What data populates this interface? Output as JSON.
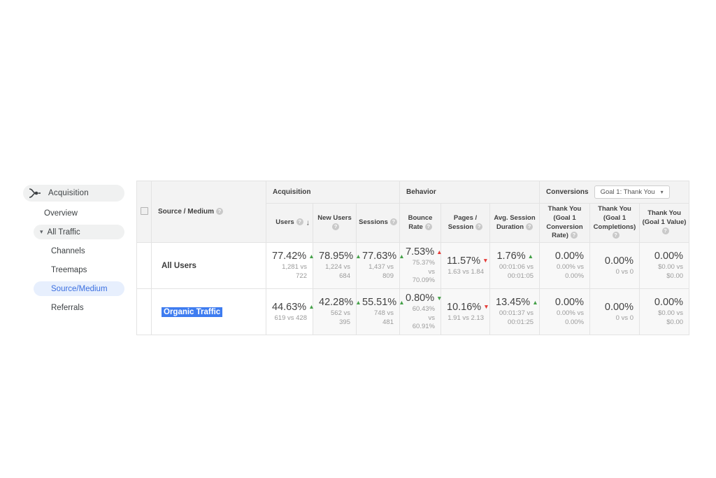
{
  "sidebar": {
    "section_label": "Acquisition",
    "section_icon": "acquisition-icon",
    "items": [
      {
        "label": "Overview",
        "level": 2,
        "state": "normal"
      },
      {
        "label": "All Traffic",
        "level": 2,
        "state": "expanded",
        "caret": "▾"
      },
      {
        "label": "Channels",
        "level": 3,
        "state": "normal"
      },
      {
        "label": "Treemaps",
        "level": 3,
        "state": "normal"
      },
      {
        "label": "Source/Medium",
        "level": 3,
        "state": "selected"
      },
      {
        "label": "Referrals",
        "level": 3,
        "state": "normal"
      }
    ]
  },
  "table": {
    "dimension_header": "Source / Medium",
    "groups": {
      "acquisition_label": "Acquisition",
      "behavior_label": "Behavior",
      "conversions_label": "Conversions",
      "goal_selector_value": "Goal 1: Thank You"
    },
    "columns": [
      {
        "label": "Users",
        "sorted": true,
        "sort_direction": "descending"
      },
      {
        "label": "New Users"
      },
      {
        "label": "Sessions"
      },
      {
        "label": "Bounce Rate"
      },
      {
        "label": "Pages / Session"
      },
      {
        "label": "Avg. Session Duration"
      },
      {
        "label": "Thank You (Goal 1 Conversion Rate)"
      },
      {
        "label": "Thank You (Goal 1 Completions)"
      },
      {
        "label": "Thank You (Goal 1 Value)"
      }
    ],
    "rows": [
      {
        "name": "All Users",
        "selected": false,
        "metrics": [
          {
            "value": "77.42%",
            "trend": "up",
            "trend_color": "green",
            "sub": "1,281 vs 722"
          },
          {
            "value": "78.95%",
            "trend": "up",
            "trend_color": "green",
            "sub": "1,224 vs 684"
          },
          {
            "value": "77.63%",
            "trend": "up",
            "trend_color": "green",
            "sub": "1,437 vs 809"
          },
          {
            "value": "7.53%",
            "trend": "up",
            "trend_color": "red",
            "sub": "75.37% vs 70.09%"
          },
          {
            "value": "11.57%",
            "trend": "down",
            "trend_color": "red",
            "sub": "1.63 vs 1.84"
          },
          {
            "value": "1.76%",
            "trend": "up",
            "trend_color": "green",
            "sub": "00:01:06 vs 00:01:05"
          },
          {
            "value": "0.00%",
            "trend": "none",
            "trend_color": "",
            "sub": "0.00% vs 0.00%"
          },
          {
            "value": "0.00%",
            "trend": "none",
            "trend_color": "",
            "sub": "0 vs 0"
          },
          {
            "value": "0.00%",
            "trend": "none",
            "trend_color": "",
            "sub": "$0.00 vs $0.00"
          }
        ]
      },
      {
        "name": "Organic Traffic",
        "selected": true,
        "metrics": [
          {
            "value": "44.63%",
            "trend": "up",
            "trend_color": "green",
            "sub": "619 vs 428"
          },
          {
            "value": "42.28%",
            "trend": "up",
            "trend_color": "green",
            "sub": "562 vs 395"
          },
          {
            "value": "55.51%",
            "trend": "up",
            "trend_color": "green",
            "sub": "748 vs 481"
          },
          {
            "value": "0.80%",
            "trend": "down",
            "trend_color": "green",
            "sub": "60.43% vs 60.91%"
          },
          {
            "value": "10.16%",
            "trend": "down",
            "trend_color": "red",
            "sub": "1.91 vs 2.13"
          },
          {
            "value": "13.45%",
            "trend": "up",
            "trend_color": "green",
            "sub": "00:01:37 vs 00:01:25"
          },
          {
            "value": "0.00%",
            "trend": "none",
            "trend_color": "",
            "sub": "0.00% vs 0.00%"
          },
          {
            "value": "0.00%",
            "trend": "none",
            "trend_color": "",
            "sub": "0 vs 0"
          },
          {
            "value": "0.00%",
            "trend": "none",
            "trend_color": "",
            "sub": "$0.00 vs $0.00"
          }
        ]
      }
    ]
  },
  "colors": {
    "trend_up_good": "#43a047",
    "trend_bad": "#e53935",
    "selection_highlight": "#3e7cf0",
    "sidebar_active_bg": "#e7effd",
    "sidebar_active_text": "#3b6fe0"
  },
  "glyphs": {
    "sort_arrow": "↓",
    "dropdown_caret": "▾",
    "expand_caret": "▾",
    "help": "?"
  }
}
